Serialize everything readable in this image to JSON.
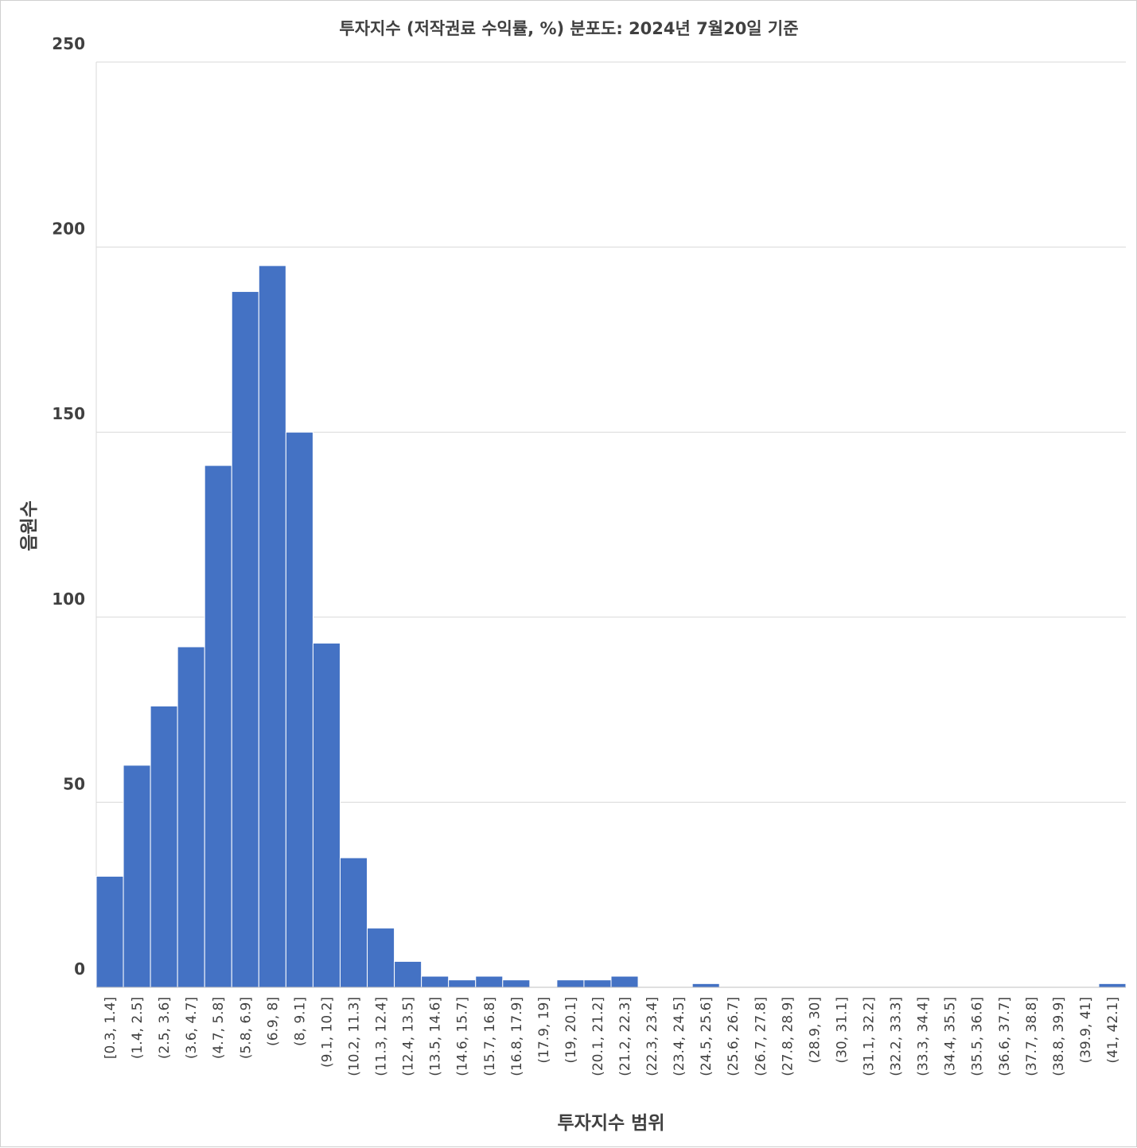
{
  "chart_data": {
    "type": "bar",
    "title": "투자지수 (저작권료 수익률, %) 분포도: 2024년 7월20일 기준",
    "xlabel": "투자지수 범위",
    "ylabel": "음원수",
    "ylim": [
      0,
      250
    ],
    "yticks": [
      "0",
      "50",
      "100",
      "150",
      "200",
      "250"
    ],
    "grid": true,
    "legend": "none",
    "bar_color": "#4472c4",
    "categories": [
      "[0.3, 1.4]",
      "(1.4, 2.5]",
      "(2.5, 3.6]",
      "(3.6, 4.7]",
      "(4.7, 5.8]",
      "(5.8, 6.9]",
      "(6.9, 8]",
      "(8, 9.1]",
      "(9.1, 10.2]",
      "(10.2, 11.3]",
      "(11.3, 12.4]",
      "(12.4, 13.5]",
      "(13.5, 14.6]",
      "(14.6, 15.7]",
      "(15.7, 16.8]",
      "(16.8, 17.9]",
      "(17.9, 19]",
      "(19, 20.1]",
      "(20.1, 21.2]",
      "(21.2, 22.3]",
      "(22.3, 23.4]",
      "(23.4, 24.5]",
      "(24.5, 25.6]",
      "(25.6, 26.7]",
      "(26.7, 27.8]",
      "(27.8, 28.9]",
      "(28.9, 30]",
      "(30, 31.1]",
      "(31.1, 32.2]",
      "(32.2, 33.3]",
      "(33.3, 34.4]",
      "(34.4, 35.5]",
      "(35.5, 36.6]",
      "(36.6, 37.7]",
      "(37.7, 38.8]",
      "(38.8, 39.9]",
      "(39.9, 41]",
      "(41, 42.1]"
    ],
    "values": [
      30,
      60,
      76,
      92,
      141,
      188,
      195,
      150,
      93,
      35,
      16,
      7,
      3,
      2,
      3,
      2,
      0,
      2,
      2,
      3,
      0,
      0,
      1,
      0,
      0,
      0,
      0,
      0,
      0,
      0,
      0,
      0,
      0,
      0,
      0,
      0,
      0,
      1
    ]
  }
}
